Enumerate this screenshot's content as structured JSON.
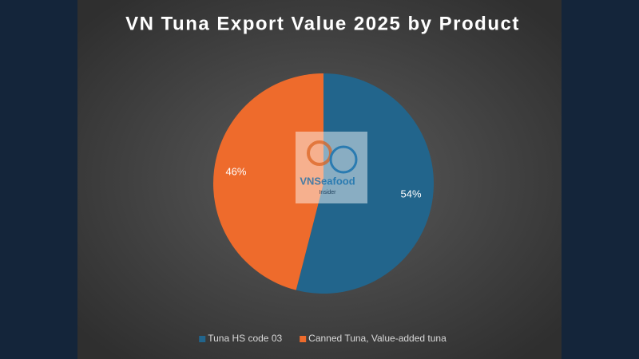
{
  "chart_data": {
    "type": "pie",
    "title": "VN Tuna Export Value 2025 by Product",
    "categories": [
      "Tuna HS code 03",
      "Canned Tuna, Value-added tuna"
    ],
    "values": [
      54,
      46
    ],
    "value_labels": [
      "54%",
      "46%"
    ],
    "colors": [
      "#22658c",
      "#ee6b2c"
    ],
    "legend": "bottom"
  },
  "watermark": {
    "brand": "VNSeafood",
    "tagline": "Insider"
  }
}
